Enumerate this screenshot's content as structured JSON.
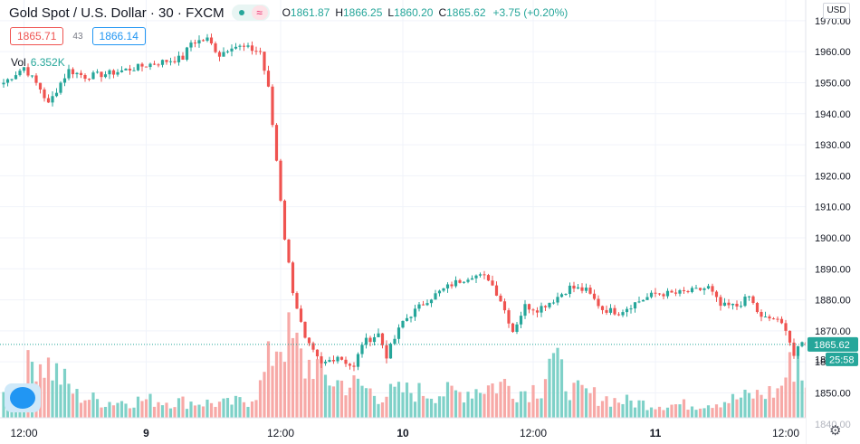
{
  "header": {
    "symbol": "Gold Spot / U.S. Dollar · 30 · FXCM",
    "open_label": "O",
    "open": "1861.87",
    "high_label": "H",
    "high": "1866.25",
    "low_label": "L",
    "low": "1860.20",
    "close_label": "C",
    "close": "1865.62",
    "change": "+3.75 (+0.20%)"
  },
  "quote": {
    "bid": "1865.71",
    "spread": "43",
    "ask": "1866.14"
  },
  "volume": {
    "label": "Vol",
    "value": "6.352K"
  },
  "price_axis": {
    "currency": "USD",
    "last_price": "1865.62",
    "countdown": "25:58",
    "hidden_label_lower": "18",
    "hidden_label_lowest": "1840.00"
  },
  "icons": {
    "logo": "brand-logo-icon",
    "settings": "settings-gear-icon",
    "wave": "wave-icon"
  },
  "colors": {
    "up": "#26a69a",
    "down": "#ef5350",
    "ask": "#2196f3"
  },
  "chart_data": {
    "type": "candlestick",
    "title": "Gold Spot / U.S. Dollar",
    "interval": "30",
    "exchange": "FXCM",
    "ylim": [
      1843,
      1972
    ],
    "y_ticks": [
      1850,
      1860,
      1870,
      1880,
      1890,
      1900,
      1910,
      1920,
      1930,
      1940,
      1950,
      1960,
      1970
    ],
    "y_tick_labels": [
      "1850.00",
      "1860.00",
      "1870.00",
      "1880.00",
      "1890.00",
      "1900.00",
      "1910.00",
      "1920.00",
      "1930.00",
      "1940.00",
      "1950.00",
      "1960.00",
      "1970.00"
    ],
    "x_tick_labels": [
      "12:00",
      "9",
      "12:00",
      "10",
      "12:00",
      "11",
      "12:00"
    ],
    "x_tick_bars": [
      5,
      35,
      68,
      98,
      130,
      160,
      192
    ],
    "grid": true,
    "last_price_line": 1865.62,
    "volume_visible_max": 120,
    "path_points": [
      [
        0,
        1950
      ],
      [
        5,
        1955
      ],
      [
        9,
        1948
      ],
      [
        11,
        1943
      ],
      [
        14,
        1950
      ],
      [
        16,
        1954
      ],
      [
        20,
        1952
      ],
      [
        26,
        1953
      ],
      [
        33,
        1955
      ],
      [
        36,
        1956
      ],
      [
        40,
        1957
      ],
      [
        44,
        1958
      ],
      [
        46,
        1963
      ],
      [
        50,
        1964
      ],
      [
        53,
        1959
      ],
      [
        56,
        1962
      ],
      [
        60,
        1961
      ],
      [
        63,
        1960
      ],
      [
        65,
        1948
      ],
      [
        67,
        1925
      ],
      [
        69,
        1900
      ],
      [
        71,
        1883
      ],
      [
        74,
        1867
      ],
      [
        78,
        1859
      ],
      [
        82,
        1862
      ],
      [
        86,
        1858
      ],
      [
        88,
        1866
      ],
      [
        92,
        1869
      ],
      [
        94,
        1862
      ],
      [
        98,
        1873
      ],
      [
        104,
        1880
      ],
      [
        110,
        1885
      ],
      [
        115,
        1888
      ],
      [
        119,
        1887
      ],
      [
        122,
        1880
      ],
      [
        125,
        1870
      ],
      [
        128,
        1878
      ],
      [
        131,
        1877
      ],
      [
        135,
        1880
      ],
      [
        139,
        1884
      ],
      [
        143,
        1883
      ],
      [
        147,
        1877
      ],
      [
        151,
        1876
      ],
      [
        155,
        1879
      ],
      [
        160,
        1882
      ],
      [
        165,
        1882
      ],
      [
        170,
        1883
      ],
      [
        173,
        1884
      ],
      [
        176,
        1878
      ],
      [
        180,
        1878
      ],
      [
        183,
        1881
      ],
      [
        186,
        1874
      ],
      [
        189,
        1874
      ],
      [
        192,
        1871
      ],
      [
        194,
        1862
      ],
      [
        196,
        1866
      ]
    ],
    "volume_profile": [
      [
        0,
        25
      ],
      [
        5,
        45
      ],
      [
        8,
        70
      ],
      [
        12,
        55
      ],
      [
        18,
        25
      ],
      [
        25,
        18
      ],
      [
        35,
        20
      ],
      [
        45,
        18
      ],
      [
        55,
        16
      ],
      [
        60,
        20
      ],
      [
        63,
        35
      ],
      [
        65,
        60
      ],
      [
        67,
        85
      ],
      [
        69,
        90
      ],
      [
        72,
        75
      ],
      [
        74,
        55
      ],
      [
        76,
        65
      ],
      [
        78,
        45
      ],
      [
        82,
        40
      ],
      [
        88,
        35
      ],
      [
        92,
        25
      ],
      [
        98,
        30
      ],
      [
        105,
        28
      ],
      [
        112,
        28
      ],
      [
        118,
        35
      ],
      [
        123,
        38
      ],
      [
        127,
        30
      ],
      [
        132,
        35
      ],
      [
        134,
        70
      ],
      [
        136,
        55
      ],
      [
        140,
        30
      ],
      [
        150,
        20
      ],
      [
        160,
        15
      ],
      [
        170,
        15
      ],
      [
        178,
        20
      ],
      [
        184,
        25
      ],
      [
        190,
        30
      ],
      [
        193,
        55
      ],
      [
        195,
        70
      ],
      [
        196,
        45
      ]
    ]
  }
}
